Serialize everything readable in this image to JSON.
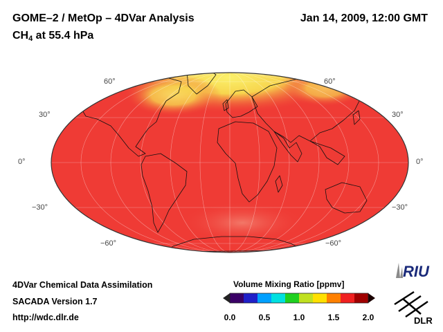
{
  "header": {
    "title": "GOME–2 / MetOp – 4DVar Analysis",
    "datetime": "Jan 14, 2009, 12:00 GMT",
    "species_prefix": "CH",
    "species_subscript": "4",
    "species_suffix": " at 55.4 hPa"
  },
  "map": {
    "projection": "Mollweide",
    "lat_labels_left": [
      "60°",
      "30°",
      "0°",
      "−30°",
      "−60°"
    ],
    "lat_labels_right": [
      "60°",
      "30°",
      "0°",
      "−30°",
      "−60°"
    ]
  },
  "footer": {
    "line1": "4DVar Chemical Data Assimilation",
    "line2": "SACADA Version 1.7",
    "line3": "http://wdc.dlr.de"
  },
  "colorbar": {
    "title": "Volume Mixing Ratio [ppmv]",
    "ticks": [
      "0.0",
      "0.5",
      "1.0",
      "1.5",
      "2.0"
    ],
    "min": 0.0,
    "max": 2.0,
    "colors": [
      "#3a0066",
      "#2020c8",
      "#00a0ff",
      "#00e0e0",
      "#20d020",
      "#c0e020",
      "#ffe000",
      "#ff8000",
      "#f02020",
      "#a00000"
    ]
  },
  "logos": {
    "riu": "RIU",
    "dlr": "DLR"
  },
  "palette": {
    "ocean_red": "#ef3b35",
    "land_red": "#f24a38",
    "arctic_yellow": "#f5e34a",
    "antarctic_pink": "#f47a66"
  }
}
